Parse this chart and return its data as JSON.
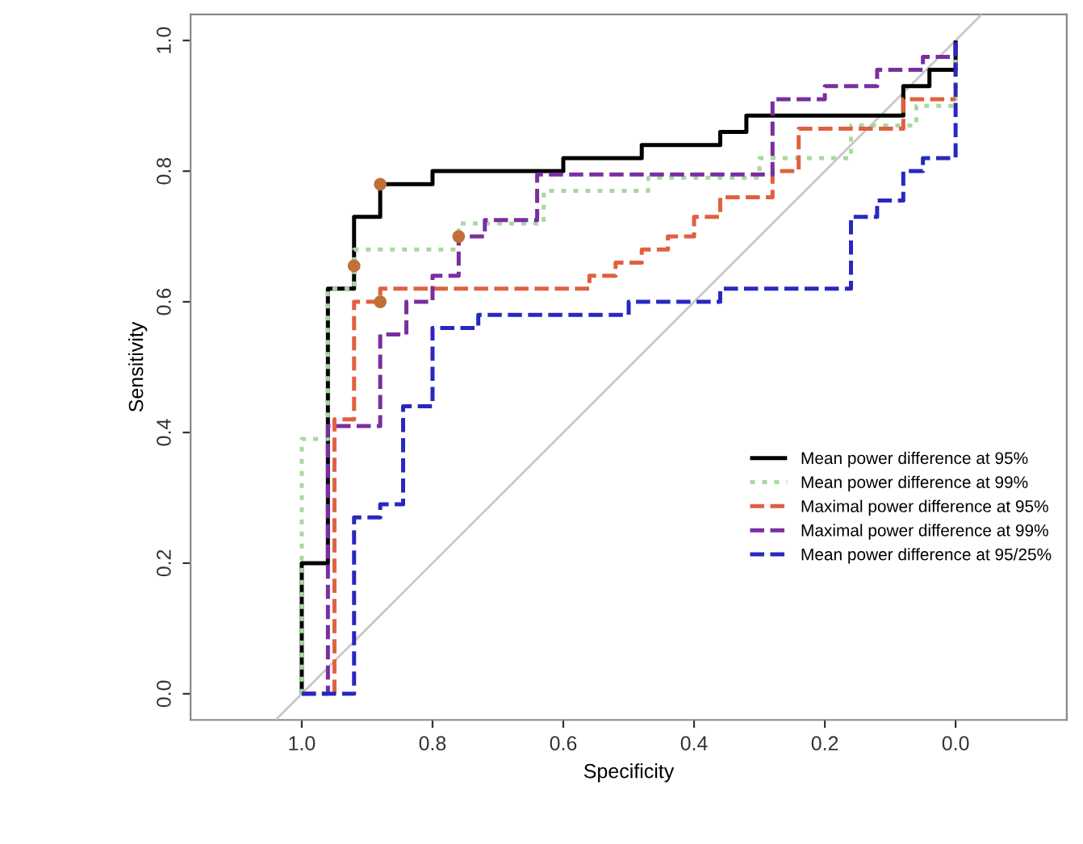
{
  "chart_data": {
    "type": "line",
    "xlabel": "Specificity",
    "ylabel": "Sensitivity",
    "xlim": [
      1.17,
      -0.17
    ],
    "ylim": [
      -0.04,
      1.04
    ],
    "xticks": [
      {
        "value": 1.0,
        "label": "1.0"
      },
      {
        "value": 0.8,
        "label": "0.8"
      },
      {
        "value": 0.6,
        "label": "0.6"
      },
      {
        "value": 0.4,
        "label": "0.4"
      },
      {
        "value": 0.2,
        "label": "0.2"
      },
      {
        "value": 0.0,
        "label": "0.0"
      }
    ],
    "yticks": [
      {
        "value": 0.0,
        "label": "0.0"
      },
      {
        "value": 0.2,
        "label": "0.2"
      },
      {
        "value": 0.4,
        "label": "0.4"
      },
      {
        "value": 0.6,
        "label": "0.6"
      },
      {
        "value": 0.8,
        "label": "0.8"
      },
      {
        "value": 1.0,
        "label": "1.0"
      }
    ],
    "grid": false,
    "legend": "bottom right",
    "marker": "none",
    "series": [
      {
        "color": "#c8c8c8",
        "line_style": "solid",
        "x": [
          1.04,
          -0.04
        ],
        "values": [
          -0.04,
          1.04
        ]
      },
      {
        "name": "Mean power difference at 95%",
        "color": "#000000",
        "line_style": "solid",
        "x": [
          1,
          1,
          0.96,
          0.96,
          0.92,
          0.92,
          0.88,
          0.88,
          0.8,
          0.8,
          0.6,
          0.6,
          0.48,
          0.48,
          0.36,
          0.36,
          0.32,
          0.32,
          0.08,
          0.08,
          0.04,
          0.04,
          0,
          0
        ],
        "values": [
          0,
          0.2,
          0.2,
          0.62,
          0.62,
          0.73,
          0.73,
          0.78,
          0.78,
          0.8,
          0.8,
          0.82,
          0.82,
          0.84,
          0.84,
          0.86,
          0.86,
          0.885,
          0.885,
          0.93,
          0.93,
          0.955,
          0.955,
          1
        ]
      },
      {
        "name": "Mean power difference at 99%",
        "color": "#a8d8a0",
        "line_style": "dotted",
        "x": [
          1,
          1,
          0.96,
          0.96,
          0.92,
          0.92,
          0.76,
          0.76,
          0.63,
          0.63,
          0.47,
          0.47,
          0.3,
          0.3,
          0.16,
          0.16,
          0.06,
          0.06,
          0,
          0
        ],
        "values": [
          0,
          0.39,
          0.39,
          0.62,
          0.62,
          0.68,
          0.68,
          0.72,
          0.72,
          0.77,
          0.77,
          0.79,
          0.79,
          0.82,
          0.82,
          0.87,
          0.87,
          0.9,
          0.9,
          1
        ]
      },
      {
        "name": "Maximal power difference at 95%",
        "color": "#e06040",
        "line_style": "dashed",
        "x": [
          0.95,
          0.95,
          0.92,
          0.92,
          0.88,
          0.88,
          0.56,
          0.56,
          0.52,
          0.52,
          0.48,
          0.48,
          0.44,
          0.44,
          0.4,
          0.4,
          0.36,
          0.36,
          0.28,
          0.28,
          0.24,
          0.24,
          0.08,
          0.08,
          0
        ],
        "values": [
          0,
          0.42,
          0.42,
          0.6,
          0.6,
          0.62,
          0.62,
          0.64,
          0.64,
          0.66,
          0.66,
          0.68,
          0.68,
          0.7,
          0.7,
          0.73,
          0.73,
          0.76,
          0.76,
          0.8,
          0.8,
          0.865,
          0.865,
          0.91,
          0.91
        ]
      },
      {
        "name": "Maximal power difference at 99%",
        "color": "#7a2ea0",
        "line_style": "dashed",
        "x": [
          1,
          0.96,
          0.96,
          0.88,
          0.88,
          0.84,
          0.84,
          0.8,
          0.8,
          0.76,
          0.76,
          0.72,
          0.72,
          0.64,
          0.64,
          0.28,
          0.28,
          0.2,
          0.2,
          0.12,
          0.12,
          0.05,
          0.05,
          0,
          0
        ],
        "values": [
          0,
          0,
          0.41,
          0.41,
          0.55,
          0.55,
          0.6,
          0.6,
          0.64,
          0.64,
          0.7,
          0.7,
          0.725,
          0.725,
          0.795,
          0.795,
          0.91,
          0.91,
          0.93,
          0.93,
          0.955,
          0.955,
          0.975,
          0.975,
          1
        ]
      },
      {
        "name": "Mean power difference at 95/25%",
        "color": "#2828c0",
        "line_style": "dashed",
        "x": [
          1,
          0.92,
          0.92,
          0.88,
          0.88,
          0.845,
          0.845,
          0.8,
          0.8,
          0.73,
          0.73,
          0.5,
          0.5,
          0.36,
          0.36,
          0.16,
          0.16,
          0.12,
          0.12,
          0.08,
          0.08,
          0.05,
          0.05,
          0,
          0
        ],
        "values": [
          0,
          0,
          0.27,
          0.27,
          0.29,
          0.29,
          0.44,
          0.44,
          0.56,
          0.56,
          0.58,
          0.58,
          0.6,
          0.6,
          0.62,
          0.62,
          0.73,
          0.73,
          0.755,
          0.755,
          0.8,
          0.8,
          0.82,
          0.82,
          1
        ]
      },
      {
        "type": "scatter",
        "color": "#c07038",
        "marker": "circle",
        "x": [
          0.92,
          0.88,
          0.88,
          0.76
        ],
        "values": [
          0.655,
          0.78,
          0.6,
          0.7
        ]
      }
    ]
  }
}
